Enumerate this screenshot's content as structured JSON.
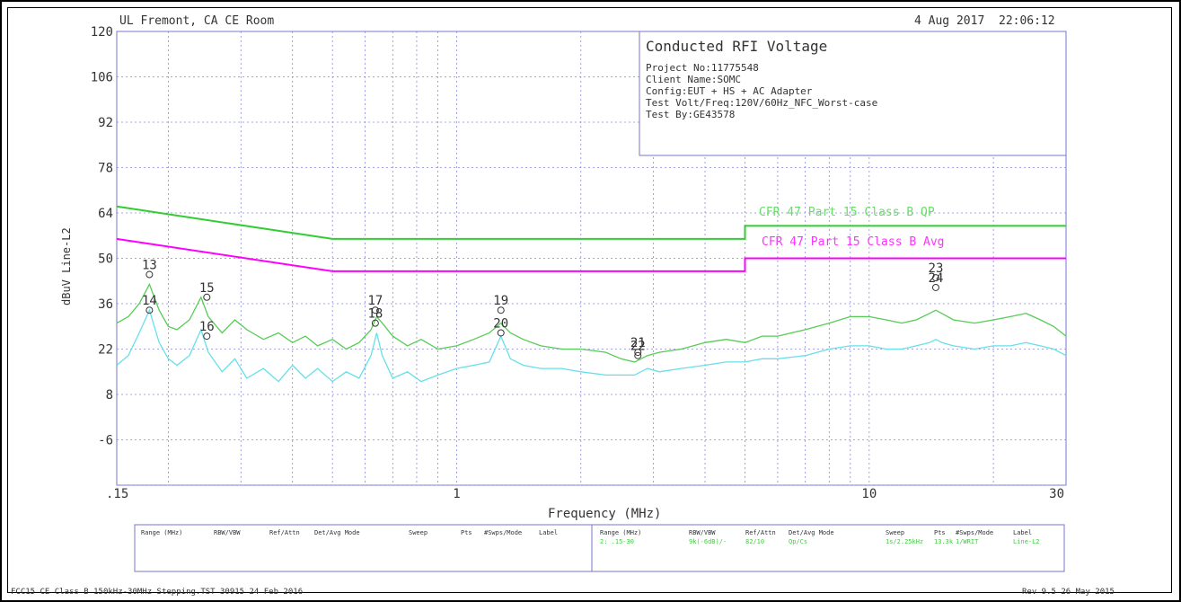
{
  "header": {
    "site": "UL Fremont, CA CE Room",
    "date": "4 Aug 2017",
    "time": "22:06:12"
  },
  "info_box": {
    "title": "Conducted RFI Voltage",
    "lines": [
      "Project No:11775548",
      "Client Name:SOMC",
      "Config:EUT + HS + AC Adapter",
      "Test Volt/Freq:120V/60Hz_NFC_Worst-case",
      "Test By:GE43578"
    ]
  },
  "footer": {
    "left": "FCC15 CE Class B 150kHz-30MHz Stepping.TST 30915 24 Feb 2016",
    "right": "Rev 9.5 26 May 2015"
  },
  "settings_table": {
    "headers": [
      "Range (MHz)",
      "RBW/VBW",
      "Ref/Attn",
      "Det/Avg Mode",
      "Sweep",
      "Pts",
      "#Swps/Mode",
      "Label"
    ],
    "row2": [
      "2: .15-30",
      "9k(-6dB)/-",
      "82/10",
      "Qp/Cs",
      "1s/2.25kHz",
      "13.3k",
      "1/WRIT",
      "Line-L2"
    ]
  },
  "chart_data": {
    "type": "line",
    "title": "",
    "xlabel": "Frequency (MHz)",
    "ylabel": "dBuV Line-L2",
    "x_scale": "log",
    "xlim": [
      0.15,
      30
    ],
    "ylim": [
      -20,
      120
    ],
    "y_ticks": [
      120,
      106,
      92,
      78,
      64,
      50,
      36,
      22,
      8,
      -6
    ],
    "x_tick_labels": [
      {
        "value": 0.15,
        "label": ".15"
      },
      {
        "value": 1,
        "label": "1"
      },
      {
        "value": 10,
        "label": "10"
      },
      {
        "value": 30,
        "label": "30"
      }
    ],
    "grid": true,
    "limit_lines": [
      {
        "name": "CFR 47 Part 15 Class B QP",
        "color": "#33cc33",
        "points": [
          [
            0.15,
            66
          ],
          [
            0.5,
            56
          ],
          [
            5,
            56
          ],
          [
            5,
            60
          ],
          [
            30,
            60
          ]
        ]
      },
      {
        "name": "CFR 47 Part 15 Class B Avg",
        "color": "#ff00ff",
        "points": [
          [
            0.15,
            56
          ],
          [
            0.5,
            46
          ],
          [
            5,
            46
          ],
          [
            5,
            50
          ],
          [
            30,
            50
          ]
        ]
      }
    ],
    "series": [
      {
        "color": "#55cc55",
        "points": [
          [
            0.15,
            30
          ],
          [
            0.16,
            32
          ],
          [
            0.17,
            36
          ],
          [
            0.18,
            42
          ],
          [
            0.19,
            34
          ],
          [
            0.2,
            29
          ],
          [
            0.21,
            28
          ],
          [
            0.225,
            31
          ],
          [
            0.24,
            38
          ],
          [
            0.25,
            32
          ],
          [
            0.27,
            27
          ],
          [
            0.29,
            31
          ],
          [
            0.31,
            28
          ],
          [
            0.34,
            25
          ],
          [
            0.37,
            27
          ],
          [
            0.4,
            24
          ],
          [
            0.43,
            26
          ],
          [
            0.46,
            23
          ],
          [
            0.5,
            25
          ],
          [
            0.54,
            22
          ],
          [
            0.58,
            24
          ],
          [
            0.62,
            28
          ],
          [
            0.64,
            32
          ],
          [
            0.66,
            30
          ],
          [
            0.7,
            26
          ],
          [
            0.76,
            23
          ],
          [
            0.82,
            25
          ],
          [
            0.9,
            22
          ],
          [
            1.0,
            23
          ],
          [
            1.1,
            25
          ],
          [
            1.2,
            27
          ],
          [
            1.28,
            30
          ],
          [
            1.35,
            27
          ],
          [
            1.45,
            25
          ],
          [
            1.6,
            23
          ],
          [
            1.8,
            22
          ],
          [
            2.0,
            22
          ],
          [
            2.3,
            21
          ],
          [
            2.5,
            19
          ],
          [
            2.7,
            18
          ],
          [
            2.9,
            20
          ],
          [
            3.1,
            21
          ],
          [
            3.5,
            22
          ],
          [
            4.0,
            24
          ],
          [
            4.5,
            25
          ],
          [
            5.0,
            24
          ],
          [
            5.5,
            26
          ],
          [
            6.0,
            26
          ],
          [
            7.0,
            28
          ],
          [
            8.0,
            30
          ],
          [
            9.0,
            32
          ],
          [
            10.0,
            32
          ],
          [
            11.0,
            31
          ],
          [
            12.0,
            30
          ],
          [
            13.0,
            31
          ],
          [
            14.0,
            33
          ],
          [
            14.5,
            34
          ],
          [
            15.0,
            33
          ],
          [
            16.0,
            31
          ],
          [
            18.0,
            30
          ],
          [
            20.0,
            31
          ],
          [
            22.0,
            32
          ],
          [
            24.0,
            33
          ],
          [
            26.0,
            31
          ],
          [
            28.0,
            29
          ],
          [
            30.0,
            26
          ]
        ]
      },
      {
        "color": "#66e0e8",
        "points": [
          [
            0.15,
            17
          ],
          [
            0.16,
            20
          ],
          [
            0.17,
            27
          ],
          [
            0.18,
            34
          ],
          [
            0.19,
            24
          ],
          [
            0.2,
            19
          ],
          [
            0.21,
            17
          ],
          [
            0.225,
            20
          ],
          [
            0.24,
            28
          ],
          [
            0.25,
            21
          ],
          [
            0.27,
            15
          ],
          [
            0.29,
            19
          ],
          [
            0.31,
            13
          ],
          [
            0.34,
            16
          ],
          [
            0.37,
            12
          ],
          [
            0.4,
            17
          ],
          [
            0.43,
            13
          ],
          [
            0.46,
            16
          ],
          [
            0.5,
            12
          ],
          [
            0.54,
            15
          ],
          [
            0.58,
            13
          ],
          [
            0.62,
            20
          ],
          [
            0.64,
            27
          ],
          [
            0.66,
            20
          ],
          [
            0.7,
            13
          ],
          [
            0.76,
            15
          ],
          [
            0.82,
            12
          ],
          [
            0.9,
            14
          ],
          [
            1.0,
            16
          ],
          [
            1.1,
            17
          ],
          [
            1.2,
            18
          ],
          [
            1.28,
            26
          ],
          [
            1.35,
            19
          ],
          [
            1.45,
            17
          ],
          [
            1.6,
            16
          ],
          [
            1.8,
            16
          ],
          [
            2.0,
            15
          ],
          [
            2.3,
            14
          ],
          [
            2.5,
            14
          ],
          [
            2.7,
            14
          ],
          [
            2.9,
            16
          ],
          [
            3.1,
            15
          ],
          [
            3.5,
            16
          ],
          [
            4.0,
            17
          ],
          [
            4.5,
            18
          ],
          [
            5.0,
            18
          ],
          [
            5.5,
            19
          ],
          [
            6.0,
            19
          ],
          [
            7.0,
            20
          ],
          [
            8.0,
            22
          ],
          [
            9.0,
            23
          ],
          [
            10.0,
            23
          ],
          [
            11.0,
            22
          ],
          [
            12.0,
            22
          ],
          [
            13.0,
            23
          ],
          [
            14.0,
            24
          ],
          [
            14.5,
            25
          ],
          [
            15.0,
            24
          ],
          [
            16.0,
            23
          ],
          [
            18.0,
            22
          ],
          [
            20.0,
            23
          ],
          [
            22.0,
            23
          ],
          [
            24.0,
            24
          ],
          [
            26.0,
            23
          ],
          [
            28.0,
            22
          ],
          [
            30.0,
            20
          ]
        ]
      }
    ],
    "markers": [
      {
        "label": "13",
        "x": 0.18,
        "y": 45
      },
      {
        "label": "14",
        "x": 0.18,
        "y": 34
      },
      {
        "label": "15",
        "x": 0.248,
        "y": 38
      },
      {
        "label": "16",
        "x": 0.248,
        "y": 26
      },
      {
        "label": "17",
        "x": 0.635,
        "y": 34
      },
      {
        "label": "18",
        "x": 0.635,
        "y": 30
      },
      {
        "label": "19",
        "x": 1.28,
        "y": 34
      },
      {
        "label": "20",
        "x": 1.28,
        "y": 27
      },
      {
        "label": "21",
        "x": 2.75,
        "y": 21
      },
      {
        "label": "22",
        "x": 2.75,
        "y": 20
      },
      {
        "label": "23",
        "x": 14.5,
        "y": 44
      },
      {
        "label": "24",
        "x": 14.5,
        "y": 41
      }
    ]
  }
}
